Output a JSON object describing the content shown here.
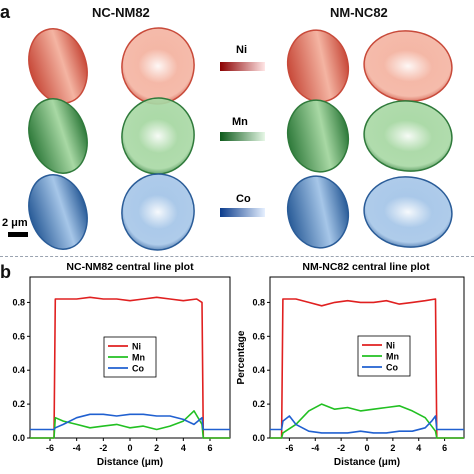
{
  "panel_a": {
    "letter": "a",
    "sample_left": "NC-NM82",
    "sample_right": "NM-NC82",
    "elements": [
      {
        "label": "Ni",
        "color": "#cc1a1a",
        "bar_dark": "#8b0000",
        "bar_light": "#ffe6e6",
        "fill_dark": "#c84a3a",
        "fill_light": "#f4b4a2"
      },
      {
        "label": "Mn",
        "color": "#1a8a2a",
        "bar_dark": "#0d5a1a",
        "bar_light": "#e6f7e6",
        "fill_dark": "#2f7a3b",
        "fill_light": "#a8d8a4"
      },
      {
        "label": "Co",
        "color": "#1a5ab4",
        "bar_dark": "#0b3c8c",
        "bar_light": "#e6f0ff",
        "fill_dark": "#2a5c98",
        "fill_light": "#a6c6e8"
      }
    ],
    "scale_bar": "2 μm"
  },
  "panel_b": {
    "letter": "b"
  },
  "chart_data": [
    {
      "type": "line",
      "title": "NC-NM82 central line plot",
      "xlabel": "Distance (μm)",
      "ylabel": "",
      "xlim": [
        -7.5,
        7.5
      ],
      "ylim": [
        0,
        0.95
      ],
      "xticks": [
        -6,
        -4,
        -2,
        0,
        2,
        4,
        6
      ],
      "yticks": [
        0.0,
        0.2,
        0.4,
        0.6,
        0.8
      ],
      "legend_position": "center-left",
      "series": [
        {
          "name": "Ni",
          "color": "#e02020",
          "x": [
            -7.5,
            -5.7,
            -5.6,
            -5.0,
            -4.0,
            -3.0,
            -2.0,
            -1.0,
            0,
            1.0,
            2.0,
            3.0,
            4.0,
            5.0,
            5.4,
            5.5,
            7.5
          ],
          "y": [
            0.0,
            0.0,
            0.82,
            0.82,
            0.82,
            0.83,
            0.82,
            0.82,
            0.81,
            0.82,
            0.83,
            0.82,
            0.81,
            0.82,
            0.8,
            0.0,
            0.0
          ]
        },
        {
          "name": "Mn",
          "color": "#22c022",
          "x": [
            -7.5,
            -5.7,
            -5.6,
            -5.0,
            -4.0,
            -3.0,
            -2.0,
            -1.0,
            0,
            1.0,
            2.0,
            3.0,
            4.0,
            4.8,
            5.4,
            5.5,
            7.5
          ],
          "y": [
            0.0,
            0.0,
            0.12,
            0.1,
            0.08,
            0.06,
            0.07,
            0.08,
            0.06,
            0.07,
            0.05,
            0.07,
            0.1,
            0.16,
            0.08,
            0.0,
            0.0
          ]
        },
        {
          "name": "Co",
          "color": "#2060d0",
          "x": [
            -7.5,
            -5.7,
            -5.6,
            -5.0,
            -4.0,
            -3.0,
            -2.0,
            -1.0,
            0,
            1.0,
            2.0,
            3.0,
            4.0,
            4.8,
            5.4,
            5.5,
            7.5
          ],
          "y": [
            0.05,
            0.05,
            0.06,
            0.08,
            0.12,
            0.14,
            0.14,
            0.13,
            0.14,
            0.14,
            0.13,
            0.13,
            0.11,
            0.08,
            0.12,
            0.05,
            0.05
          ]
        }
      ]
    },
    {
      "type": "line",
      "title": "NM-NC82 central line plot",
      "xlabel": "Distance (μm)",
      "ylabel": "Percentage",
      "xlim": [
        -7.5,
        7.5
      ],
      "ylim": [
        0,
        0.95
      ],
      "xticks": [
        -6,
        -4,
        -2,
        0,
        2,
        4,
        6
      ],
      "yticks": [
        0.0,
        0.2,
        0.4,
        0.6,
        0.8
      ],
      "legend_position": "center-right",
      "series": [
        {
          "name": "Ni",
          "color": "#e02020",
          "x": [
            -7.5,
            -6.6,
            -6.5,
            -5.5,
            -4.5,
            -3.5,
            -2.5,
            -1.5,
            -0.5,
            0.5,
            1.5,
            2.5,
            3.5,
            4.5,
            5.3,
            5.4,
            7.5
          ],
          "y": [
            0.0,
            0.0,
            0.82,
            0.82,
            0.8,
            0.78,
            0.8,
            0.81,
            0.8,
            0.8,
            0.81,
            0.79,
            0.8,
            0.81,
            0.82,
            0.0,
            0.0
          ]
        },
        {
          "name": "Mn",
          "color": "#22c022",
          "x": [
            -7.5,
            -6.6,
            -6.5,
            -5.5,
            -4.5,
            -3.5,
            -2.5,
            -1.5,
            -0.5,
            0.5,
            1.5,
            2.5,
            3.5,
            4.5,
            5.3,
            5.4,
            7.5
          ],
          "y": [
            0.0,
            0.0,
            0.03,
            0.08,
            0.16,
            0.2,
            0.17,
            0.18,
            0.16,
            0.17,
            0.18,
            0.19,
            0.16,
            0.12,
            0.04,
            0.0,
            0.0
          ]
        },
        {
          "name": "Co",
          "color": "#2060d0",
          "x": [
            -7.5,
            -6.6,
            -6.5,
            -6.0,
            -5.5,
            -4.5,
            -3.5,
            -2.5,
            -1.5,
            -0.5,
            0.5,
            1.5,
            2.5,
            3.5,
            4.5,
            5.0,
            5.3,
            5.4,
            7.5
          ],
          "y": [
            0.05,
            0.05,
            0.1,
            0.13,
            0.08,
            0.04,
            0.03,
            0.03,
            0.03,
            0.04,
            0.03,
            0.03,
            0.04,
            0.04,
            0.06,
            0.1,
            0.13,
            0.05,
            0.05
          ]
        }
      ]
    }
  ]
}
